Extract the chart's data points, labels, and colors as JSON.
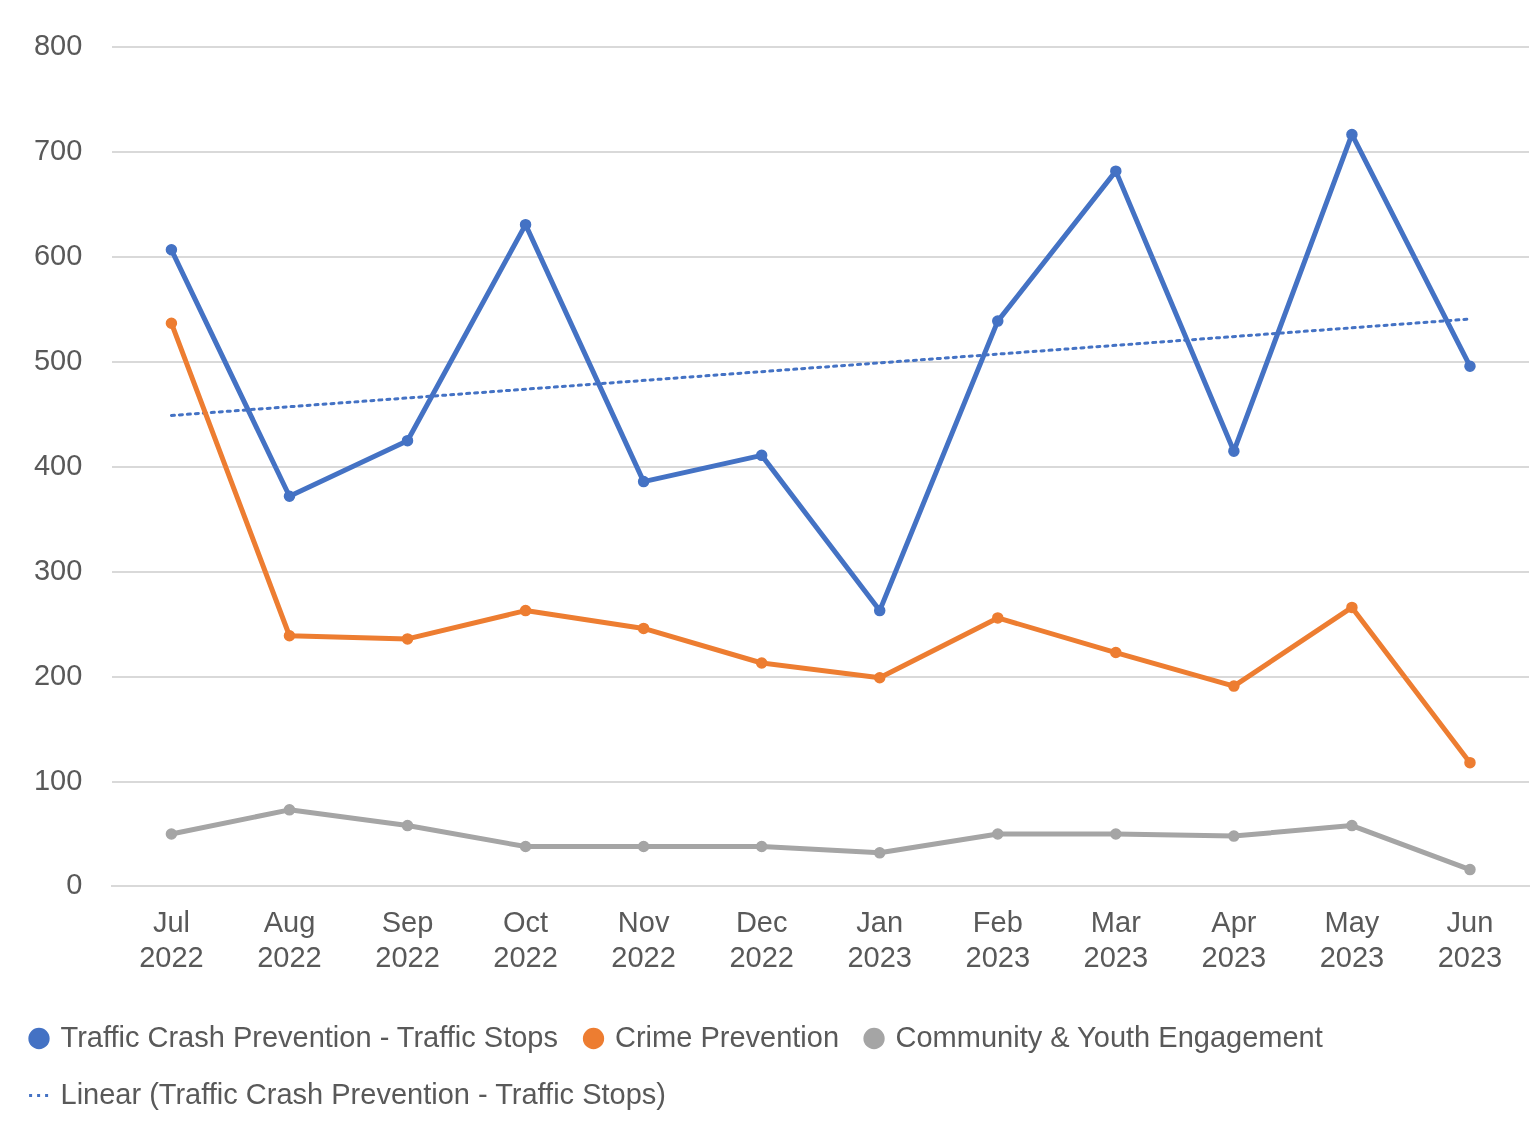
{
  "chart_data": {
    "type": "line",
    "categories": [
      "Jul 2022",
      "Aug 2022",
      "Sep 2022",
      "Oct 2022",
      "Nov 2022",
      "Dec 2022",
      "Jan 2023",
      "Feb 2023",
      "Mar 2023",
      "Apr 2023",
      "May 2023",
      "Jun 2023"
    ],
    "series": [
      {
        "name": "Traffic Crash Prevention - Traffic Stops",
        "color": "#4472c4",
        "values": [
          607,
          372,
          425,
          631,
          386,
          411,
          263,
          539,
          682,
          415,
          717,
          496
        ]
      },
      {
        "name": "Crime Prevention",
        "color": "#ed7d31",
        "values": [
          537,
          239,
          236,
          263,
          246,
          213,
          199,
          256,
          223,
          191,
          266,
          118
        ]
      },
      {
        "name": "Community & Youth Engagement",
        "color": "#a5a5a5",
        "values": [
          50,
          73,
          58,
          38,
          38,
          38,
          32,
          50,
          50,
          48,
          58,
          16
        ]
      },
      {
        "name": "Linear (Traffic Crash Prevention - Traffic Stops)",
        "color": "#4472c4",
        "values": [
          449,
          null,
          null,
          null,
          null,
          null,
          null,
          null,
          null,
          null,
          null,
          541
        ],
        "line_style": "dotted",
        "marker": "none"
      }
    ],
    "ylim": [
      0,
      800
    ],
    "yticks": [
      0,
      100,
      200,
      300,
      400,
      500,
      600,
      700,
      800
    ],
    "grid": "y",
    "legend": "bottom",
    "marker": "circle",
    "line_style": "solid"
  }
}
